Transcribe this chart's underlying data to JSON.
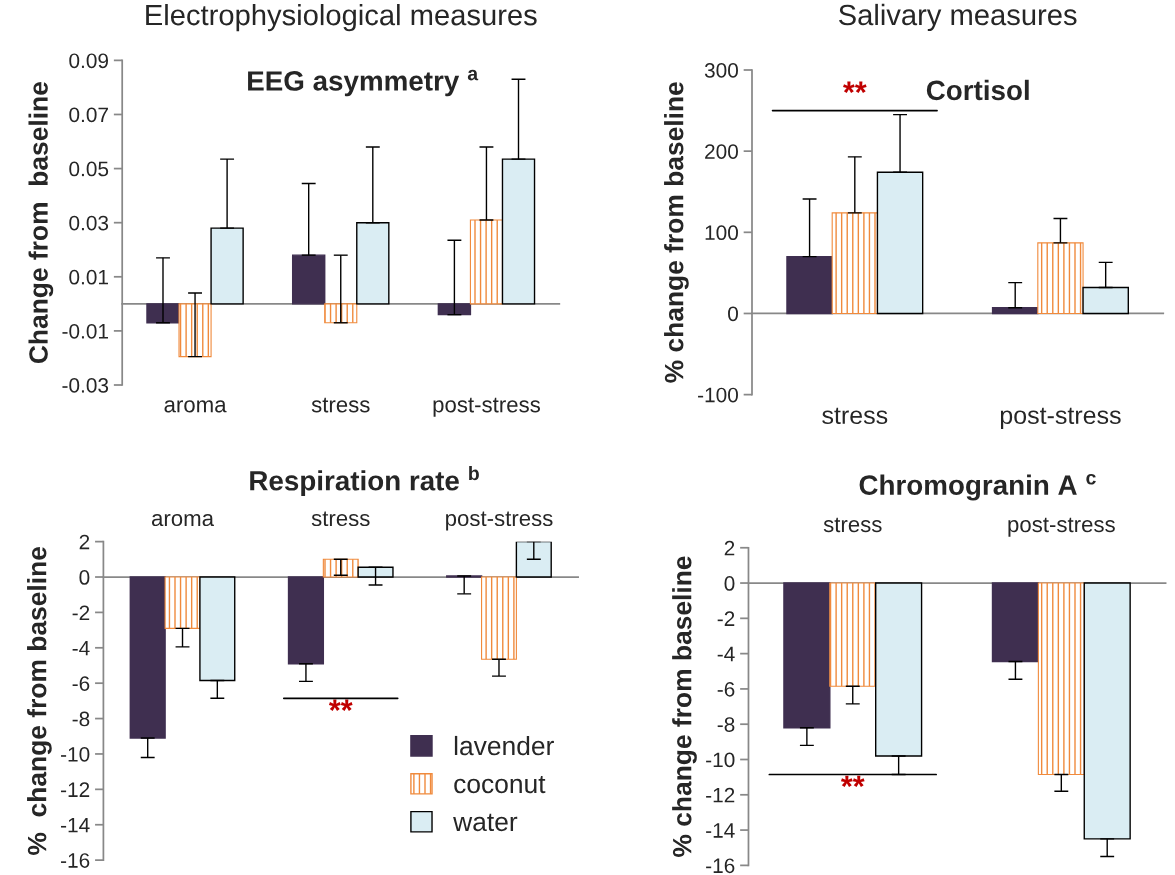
{
  "chart_data": [
    {
      "type": "bar",
      "title": "EEG asymmetry $^{a}$",
      "ylabel": "Change from  baseline",
      "categories": [
        "aroma",
        "stress",
        "post-stress"
      ],
      "ylim": [
        -0.03,
        0.09
      ],
      "yticks": [
        -0.03,
        -0.01,
        0.01,
        0.03,
        0.05,
        0.07,
        0.09
      ],
      "series": [
        {
          "color": "#3f2f50",
          "values": [
            -0.007,
            0.018,
            -0.004
          ],
          "errors": [
            [
              -0.007,
              0.017
            ],
            [
              0.018,
              0.0445
            ],
            [
              -0.004,
              0.0235
            ]
          ]
        },
        {
          "color": "#f08a3c",
          "values": [
            -0.0195,
            -0.007,
            0.031
          ],
          "errors": [
            [
              -0.0195,
              0.004
            ],
            [
              -0.007,
              0.018
            ],
            [
              0.031,
              0.058
            ]
          ]
        },
        {
          "color": "#daedf3",
          "values": [
            0.028,
            0.03,
            0.0535
          ],
          "errors": [
            [
              0.028,
              0.0535
            ],
            [
              0.03,
              0.058
            ],
            [
              0.0535,
              0.083
            ]
          ]
        }
      ],
      "annotations": [
        "Electrophysiological measures"
      ]
    },
    {
      "type": "bar",
      "title": "Cortisol",
      "ylabel": "% change from baseline",
      "categories": [
        "stress",
        "post-stress"
      ],
      "ylim": [
        -100,
        300
      ],
      "yticks": [
        -100,
        0,
        100,
        200,
        300
      ],
      "series": [
        {
          "color": "#3f2f50",
          "values": [
            70,
            7
          ],
          "errors": [
            [
              70,
              141
            ],
            [
              7,
              38
            ]
          ]
        },
        {
          "color": "#f08a3c",
          "values": [
            124,
            87
          ],
          "errors": [
            [
              124,
              193
            ],
            [
              87,
              117
            ]
          ]
        },
        {
          "color": "#daedf3",
          "values": [
            174,
            32
          ],
          "errors": [
            [
              174,
              245
            ],
            [
              32,
              63
            ]
          ]
        }
      ],
      "annotations": [
        "Salivary measures",
        "**"
      ]
    },
    {
      "type": "bar",
      "title": "Respiration rate $^{b}$",
      "ylabel": "%  change from baseline",
      "categories": [
        "aroma",
        "stress",
        "post-stress"
      ],
      "ylim": [
        -16,
        2
      ],
      "yticks": [
        -16,
        -14,
        -12,
        -10,
        -8,
        -6,
        -4,
        -2,
        0,
        2
      ],
      "legend": "bottom right",
      "series": [
        {
          "name": "lavender",
          "color": "#3f2f50",
          "values": [
            -9.1,
            -4.9,
            0.06
          ],
          "errors": [
            [
              -10.2,
              -9.1
            ],
            [
              -5.9,
              -4.9
            ],
            [
              -0.95,
              0.06
            ]
          ]
        },
        {
          "name": "coconut",
          "color": "#f08a3c",
          "values": [
            -2.9,
            1.0,
            -4.65
          ],
          "errors": [
            [
              -3.95,
              -2.9
            ],
            [
              0.1,
              1.0
            ],
            [
              -5.6,
              -4.65
            ]
          ]
        },
        {
          "name": "water",
          "color": "#daedf3",
          "values": [
            -5.85,
            0.55,
            2.0
          ],
          "errors": [
            [
              -6.85,
              -5.85
            ],
            [
              -0.45,
              0.55
            ],
            [
              1.0,
              2.0
            ]
          ]
        }
      ],
      "annotations": [
        "**"
      ]
    },
    {
      "type": "bar",
      "title": "Chromogranin A $^{c}$",
      "ylabel": "% change from baseline",
      "categories": [
        "stress",
        "post-stress"
      ],
      "ylim": [
        -16,
        2
      ],
      "yticks": [
        -16,
        -14,
        -12,
        -10,
        -8,
        -6,
        -4,
        -2,
        0,
        2
      ],
      "series": [
        {
          "color": "#3f2f50",
          "values": [
            -8.2,
            -4.45
          ],
          "errors": [
            [
              -9.2,
              -8.2
            ],
            [
              -5.45,
              -4.45
            ]
          ]
        },
        {
          "color": "#f08a3c",
          "values": [
            -5.85,
            -10.85
          ],
          "errors": [
            [
              -6.85,
              -5.85
            ],
            [
              -11.8,
              -10.85
            ]
          ]
        },
        {
          "color": "#daedf3",
          "values": [
            -9.8,
            -14.5
          ],
          "errors": [
            [
              -10.85,
              -9.8
            ],
            [
              -15.5,
              -14.5
            ]
          ]
        }
      ],
      "annotations": [
        "**"
      ]
    }
  ]
}
